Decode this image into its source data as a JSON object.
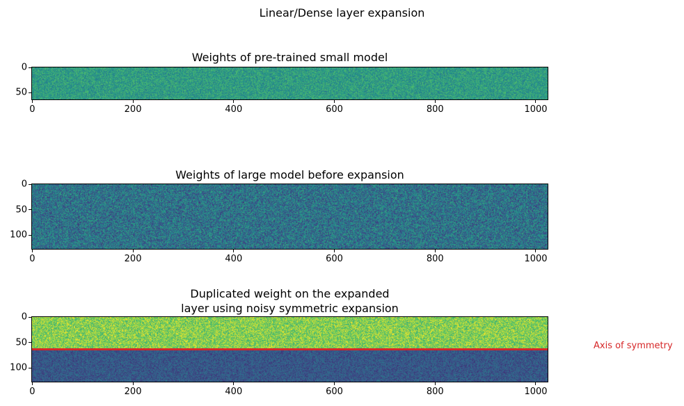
{
  "figure": {
    "suptitle": "Linear/Dense layer expansion",
    "background": "#ffffff",
    "accent_red": "#d62728"
  },
  "chart_data": {
    "type": "heatmap",
    "title": "Linear/Dense layer expansion",
    "colormap": "viridis",
    "grid": false,
    "subplots": [
      {
        "title": "Weights of pre-trained small model",
        "rows": 64,
        "cols": 1024,
        "x_ticks": [
          "0",
          "200",
          "400",
          "600",
          "800",
          "1000"
        ],
        "x_tick_values": [
          0,
          200,
          400,
          600,
          800,
          1000
        ],
        "y_ticks": [
          "0",
          "50"
        ],
        "y_tick_values": [
          0,
          50
        ],
        "x_range": [
          0,
          1024
        ],
        "y_range": [
          0,
          64
        ],
        "regions": [
          {
            "name": "full",
            "row_start": 0,
            "row_end": 64,
            "value_min": 0.4,
            "value_max": 0.7,
            "appearance": "near-uniform teal low-variance noise"
          }
        ]
      },
      {
        "title": "Weights of large model before expansion",
        "rows": 128,
        "cols": 1024,
        "x_ticks": [
          "0",
          "200",
          "400",
          "600",
          "800",
          "1000"
        ],
        "x_tick_values": [
          0,
          200,
          400,
          600,
          800,
          1000
        ],
        "y_ticks": [
          "0",
          "50",
          "100"
        ],
        "y_tick_values": [
          0,
          50,
          100
        ],
        "x_range": [
          0,
          1024
        ],
        "y_range": [
          0,
          128
        ],
        "regions": [
          {
            "name": "full",
            "row_start": 0,
            "row_end": 128,
            "value_min": 0.16,
            "value_max": 0.6,
            "appearance": "blue-green high-variance noise"
          }
        ]
      },
      {
        "title": "Duplicated weight on the expanded\nlayer using noisy symmetric expansion",
        "rows": 128,
        "cols": 1024,
        "x_ticks": [
          "0",
          "200",
          "400",
          "600",
          "800",
          "1000"
        ],
        "x_tick_values": [
          0,
          200,
          400,
          600,
          800,
          1000
        ],
        "y_ticks": [
          "0",
          "50",
          "100"
        ],
        "y_tick_values": [
          0,
          50,
          100
        ],
        "x_range": [
          0,
          1024
        ],
        "y_range": [
          0,
          128
        ],
        "regions": [
          {
            "name": "top-half",
            "row_start": 0,
            "row_end": 64,
            "value_min": 0.6,
            "value_max": 1.0,
            "appearance": "yellow-green noise (duplicated weights)"
          },
          {
            "name": "bottom-half",
            "row_start": 64,
            "row_end": 128,
            "value_min": 0.15,
            "value_max": 0.4,
            "appearance": "dark blue noise (mirrored weights)"
          }
        ],
        "annotation": {
          "label": "Axis of symmetry",
          "row": 64,
          "color": "#d62728"
        }
      }
    ]
  }
}
